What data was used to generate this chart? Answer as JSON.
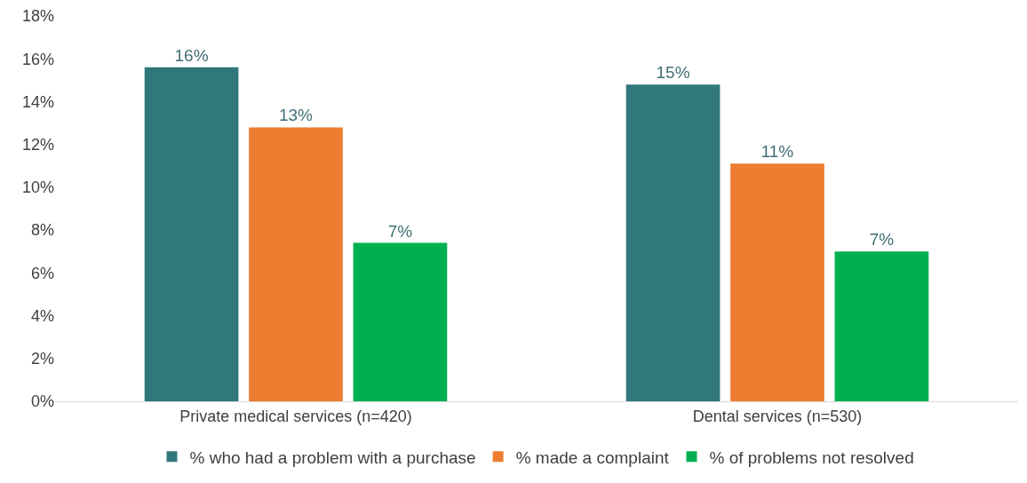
{
  "chart_data": {
    "type": "bar",
    "categories": [
      "Private medical services (n=420)",
      "Dental services (n=530)"
    ],
    "series": [
      {
        "name": "% who had a problem with a purchase",
        "color": "#31787c",
        "values": [
          15.6,
          14.8
        ],
        "value_labels": [
          "16%",
          "15%"
        ]
      },
      {
        "name": "% made a complaint",
        "color": "#ed7d31",
        "values": [
          12.8,
          11.1
        ],
        "value_labels": [
          "13%",
          "11%"
        ]
      },
      {
        "name": "% of problems not resolved",
        "color": "#00b050",
        "values": [
          7.4,
          7.0
        ],
        "value_labels": [
          "7%",
          "7%"
        ]
      }
    ],
    "ylim": [
      0,
      18
    ],
    "yticks": [
      {
        "value": 0,
        "label": "0%"
      },
      {
        "value": 2,
        "label": "2%"
      },
      {
        "value": 4,
        "label": "4%"
      },
      {
        "value": 6,
        "label": "6%"
      },
      {
        "value": 8,
        "label": "8%"
      },
      {
        "value": 10,
        "label": "10%"
      },
      {
        "value": 12,
        "label": "12%"
      },
      {
        "value": 14,
        "label": "14%"
      },
      {
        "value": 16,
        "label": "16%"
      },
      {
        "value": 18,
        "label": "18%"
      }
    ],
    "grid": false,
    "legend": "bottom"
  }
}
